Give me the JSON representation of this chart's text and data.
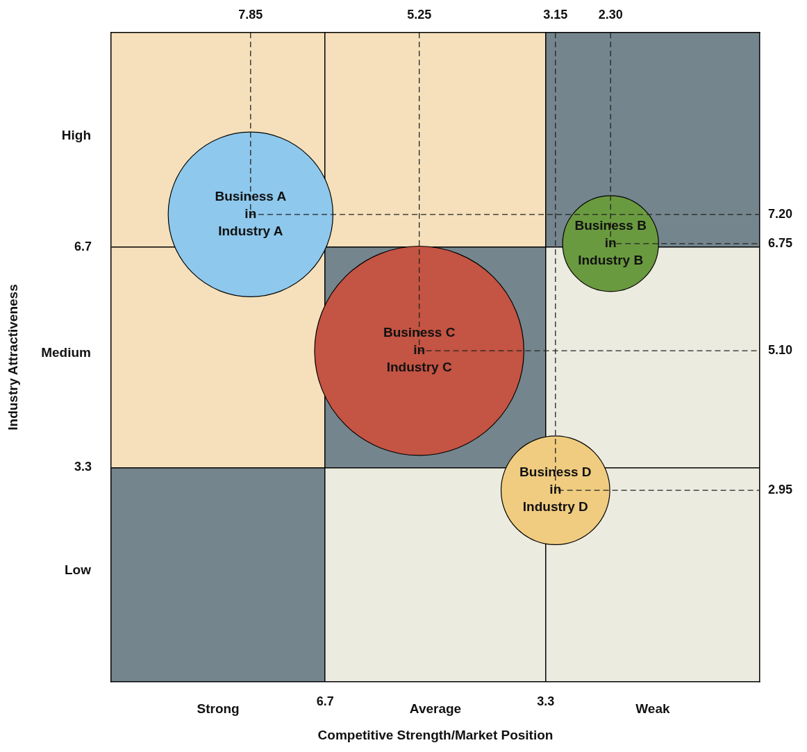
{
  "chart_data": {
    "type": "bubble",
    "xlabel": "Competitive Strength/Market Position",
    "ylabel": "Industry Attractiveness",
    "xlim": [
      10,
      0
    ],
    "xticks": [
      6.7,
      3.3
    ],
    "ylim": [
      0,
      10
    ],
    "yticks": [
      3.3,
      6.7
    ],
    "x2lim": [
      10,
      0
    ],
    "x2ticks": [
      7.85,
      5.25,
      3.15,
      {
        "value": 2.3,
        "label": "2.30"
      }
    ],
    "y2lim": [
      0,
      10
    ],
    "y2ticks": [
      {
        "value": 7.2,
        "label": "7.20"
      },
      6.75,
      {
        "value": 5.1,
        "label": "5.10"
      },
      2.95
    ],
    "grid": true,
    "legend": false,
    "line_style": "dashed",
    "annotations": [
      "Strong",
      "Average",
      "Weak",
      "High",
      "Medium",
      "Low"
    ],
    "series": [
      {
        "name": "Business A\nin\nIndustry A",
        "color": "#8ec8ec",
        "x": [
          7.85
        ],
        "values": [
          7.2
        ],
        "sizes": [
          0.62
        ]
      },
      {
        "name": "Business B\nin\nIndustry B",
        "color": "#6a9a3f",
        "x": [
          2.3
        ],
        "values": [
          6.75
        ],
        "sizes": [
          0.21
        ]
      },
      {
        "name": "Business C\nin\nIndustry C",
        "color": "#c45443",
        "x": [
          5.25
        ],
        "values": [
          5.1
        ],
        "sizes": [
          1
        ]
      },
      {
        "name": "Business D\nin\nIndustry D",
        "color": "#f0cc80",
        "x": [
          3.15
        ],
        "values": [
          2.95
        ],
        "sizes": [
          0.27
        ]
      },
      {
        "type": "line",
        "color": "#222222",
        "marker": "none",
        "x": [
          7.85,
          7.85,
          0
        ],
        "values": [
          10,
          7.2,
          7.2
        ]
      },
      {
        "type": "line",
        "color": "#222222",
        "marker": "none",
        "x": [
          2.3,
          2.3,
          0
        ],
        "values": [
          10,
          6.75,
          6.75
        ]
      },
      {
        "type": "line",
        "color": "#222222",
        "marker": "none",
        "x": [
          5.25,
          5.25,
          0
        ],
        "values": [
          10,
          5.1,
          5.1
        ]
      },
      {
        "type": "line",
        "color": "#222222",
        "marker": "none",
        "x": [
          3.15,
          3.15,
          0
        ],
        "values": [
          10,
          2.95,
          2.95
        ]
      }
    ]
  }
}
